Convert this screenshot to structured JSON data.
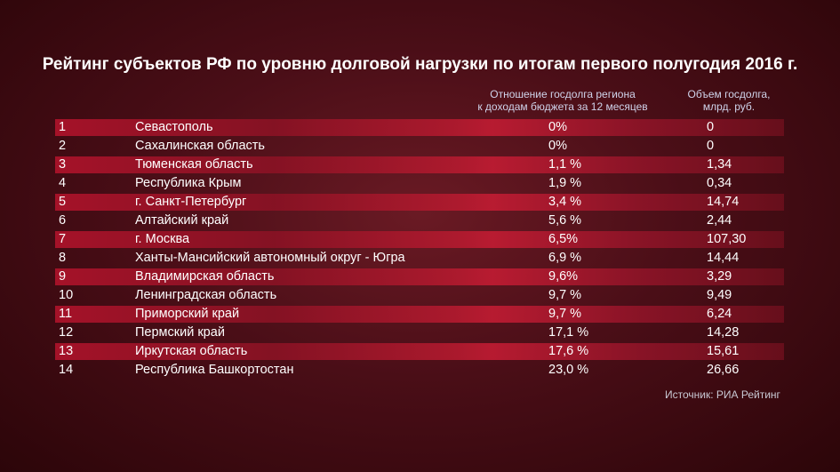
{
  "title": "Рейтинг субъектов РФ по уровню долговой нагрузки по итогам первого полугодия 2016 г.",
  "columns": {
    "ratio_line1": "Отношение госдолга региона",
    "ratio_line2": "к доходам бюджета за 12 месяцев",
    "debt_line1": "Объем госдолга,",
    "debt_line2": "млрд. руб."
  },
  "source": "Источник: РИА Рейтинг",
  "colors": {
    "stripe": "#b0132b",
    "background": "#4a0e17",
    "header_text": "#cfd3ea"
  },
  "chart_data": {
    "type": "table",
    "title": "Рейтинг субъектов РФ по уровню долговой нагрузки по итогам первого полугодия 2016 г.",
    "rows": [
      {
        "rank": "1",
        "region": "Севастополь",
        "ratio": "0%",
        "debt": "0"
      },
      {
        "rank": "2",
        "region": "Сахалинская область",
        "ratio": "0%",
        "debt": "0"
      },
      {
        "rank": "3",
        "region": "Тюменская область",
        "ratio": "1,1 %",
        "debt": "1,34"
      },
      {
        "rank": "4",
        "region": "Республика Крым",
        "ratio": "1,9 %",
        "debt": "0,34"
      },
      {
        "rank": "5",
        "region": "г. Санкт-Петербург",
        "ratio": "3,4 %",
        "debt": "14,74"
      },
      {
        "rank": "6",
        "region": "Алтайский край",
        "ratio": "5,6 %",
        "debt": "2,44"
      },
      {
        "rank": "7",
        "region": "г. Москва",
        "ratio": "6,5%",
        "debt": "107,30"
      },
      {
        "rank": "8",
        "region": "Ханты-Мансийский автономный округ - Югра",
        "ratio": "6,9 %",
        "debt": "14,44"
      },
      {
        "rank": "9",
        "region": "Владимирская область",
        "ratio": "9,6%",
        "debt": "3,29"
      },
      {
        "rank": "10",
        "region": "Ленинградская область",
        "ratio": "9,7 %",
        "debt": "9,49"
      },
      {
        "rank": "11",
        "region": "Приморский край",
        "ratio": "9,7 %",
        "debt": "6,24"
      },
      {
        "rank": "12",
        "region": "Пермский край",
        "ratio": "17,1 %",
        "debt": "14,28"
      },
      {
        "rank": "13",
        "region": "Иркутская область",
        "ratio": "17,6 %",
        "debt": "15,61"
      },
      {
        "rank": "14",
        "region": "Республика Башкортостан",
        "ratio": "23,0 %",
        "debt": "26,66"
      }
    ]
  }
}
